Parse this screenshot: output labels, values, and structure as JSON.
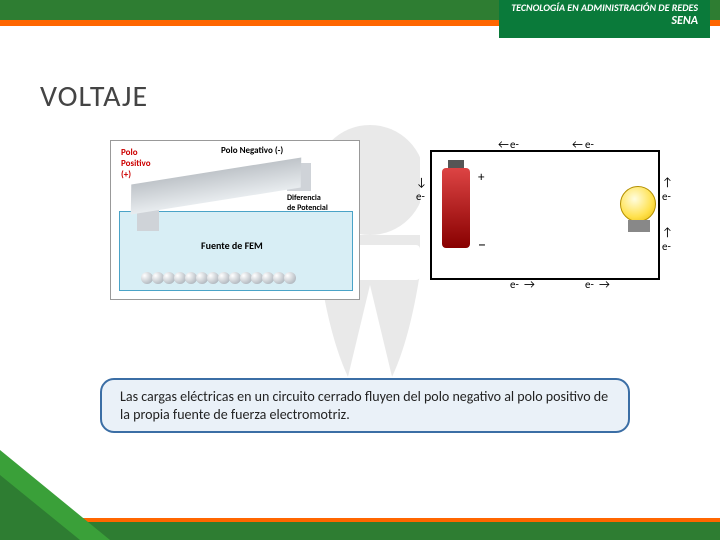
{
  "header": {
    "banner_bg": "#2e7d32",
    "accent_bg": "#ff6600",
    "program_line1": "TECNOLOGÍA EN ADMINISTRACIÓN DE REDES",
    "program_line2": "SENA"
  },
  "slide": {
    "title": "VOLTAJE",
    "title_color": "#444444",
    "title_fontsize": 30
  },
  "diagram1": {
    "label_polo_positivo": "Polo\nPositivo\n(+)",
    "label_polo_negativo": "Polo Negativo (-)",
    "label_diferencia": "Diferencia\nde Potencial",
    "label_fuente": "Fuente de FEM",
    "bg_color": "#d8eef5",
    "ball_count": 14
  },
  "diagram2": {
    "electron_label": "e-",
    "plus": "+",
    "minus": "−",
    "battery_color_top": "#d44444",
    "battery_color_bottom": "#880000",
    "bulb_color": "#ffe14d",
    "arrow_glyph_left": "←",
    "arrow_glyph_right": "→",
    "arrow_glyph_up": "↑",
    "arrow_glyph_down": "↓"
  },
  "caption": {
    "text": "Las cargas eléctricas en un circuito cerrado fluyen del polo negativo al polo positivo de  la  propia fuente de fuerza electromotriz.",
    "bg": "#eaf1f8",
    "border": "#3b6ea5",
    "fontsize": 14
  },
  "footer": {
    "green": "#2e7d32",
    "accent": "#ff6600",
    "triangle_light": "#3aa039"
  }
}
